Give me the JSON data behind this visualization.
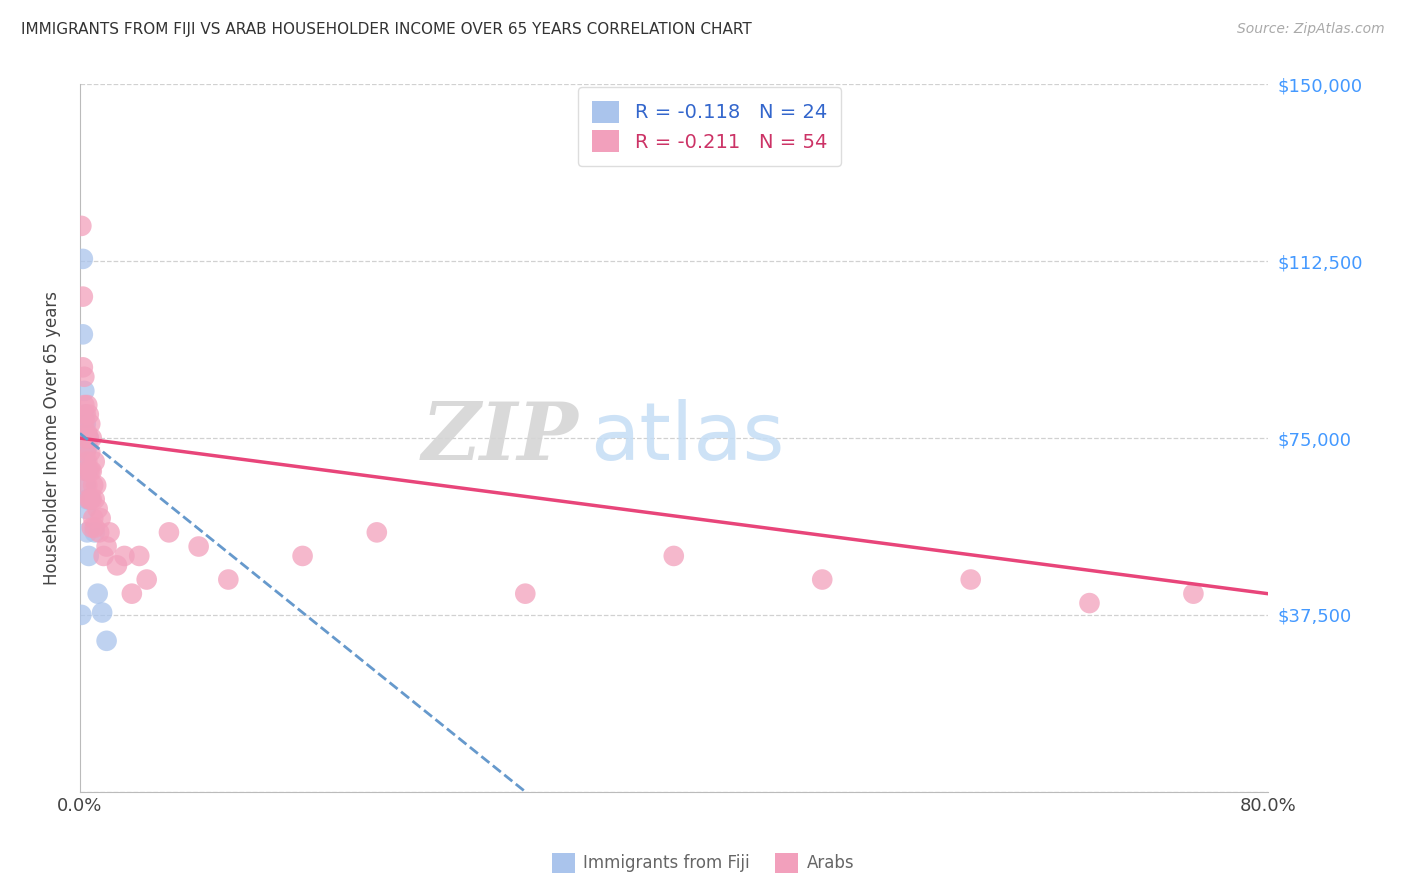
{
  "title": "IMMIGRANTS FROM FIJI VS ARAB HOUSEHOLDER INCOME OVER 65 YEARS CORRELATION CHART",
  "source": "Source: ZipAtlas.com",
  "ylabel": "Householder Income Over 65 years",
  "watermark_zip": "ZIP",
  "watermark_atlas": "atlas",
  "fiji_color": "#aac4ec",
  "arab_color": "#f2a0bc",
  "fiji_line_color": "#6699cc",
  "arab_line_color": "#e8457a",
  "fiji_R": -0.118,
  "fiji_N": 24,
  "arab_R": -0.211,
  "arab_N": 54,
  "xlim": [
    0.0,
    0.8
  ],
  "ylim": [
    0,
    150000
  ],
  "yticks": [
    0,
    37500,
    75000,
    112500,
    150000
  ],
  "ytick_labels": [
    "",
    "$37,500",
    "$75,000",
    "$112,500",
    "$150,000"
  ],
  "xticks": [
    0.0,
    0.2,
    0.4,
    0.6,
    0.8
  ],
  "xtick_labels": [
    "0.0%",
    "",
    "",
    "",
    "80.0%"
  ],
  "fiji_x": [
    0.001,
    0.001,
    0.002,
    0.002,
    0.003,
    0.003,
    0.003,
    0.003,
    0.004,
    0.004,
    0.004,
    0.004,
    0.004,
    0.005,
    0.005,
    0.005,
    0.005,
    0.006,
    0.006,
    0.007,
    0.01,
    0.012,
    0.015,
    0.018
  ],
  "fiji_y": [
    37500,
    75000,
    113000,
    97000,
    85000,
    80000,
    77000,
    72000,
    75000,
    78000,
    70000,
    65000,
    60000,
    73000,
    68000,
    62000,
    55000,
    75000,
    50000,
    62000,
    55000,
    42000,
    38000,
    32000
  ],
  "arab_x": [
    0.001,
    0.002,
    0.002,
    0.003,
    0.003,
    0.003,
    0.004,
    0.004,
    0.004,
    0.004,
    0.005,
    0.005,
    0.005,
    0.005,
    0.006,
    0.006,
    0.006,
    0.006,
    0.007,
    0.007,
    0.007,
    0.007,
    0.008,
    0.008,
    0.008,
    0.008,
    0.009,
    0.009,
    0.01,
    0.01,
    0.01,
    0.011,
    0.012,
    0.013,
    0.014,
    0.016,
    0.018,
    0.02,
    0.025,
    0.03,
    0.035,
    0.04,
    0.045,
    0.06,
    0.08,
    0.1,
    0.15,
    0.2,
    0.3,
    0.4,
    0.5,
    0.6,
    0.68,
    0.75
  ],
  "arab_y": [
    120000,
    105000,
    90000,
    88000,
    82000,
    78000,
    80000,
    75000,
    72000,
    68000,
    82000,
    76000,
    70000,
    65000,
    80000,
    75000,
    68000,
    62000,
    78000,
    72000,
    68000,
    62000,
    75000,
    68000,
    62000,
    56000,
    65000,
    58000,
    70000,
    62000,
    56000,
    65000,
    60000,
    55000,
    58000,
    50000,
    52000,
    55000,
    48000,
    50000,
    42000,
    50000,
    45000,
    55000,
    52000,
    45000,
    50000,
    55000,
    42000,
    50000,
    45000,
    45000,
    40000,
    42000
  ],
  "arab_line_x": [
    0.0,
    0.8
  ],
  "arab_line_y": [
    75000,
    42000
  ],
  "fiji_line_x": [
    0.0,
    0.3
  ],
  "fiji_line_y": [
    76000,
    0
  ]
}
